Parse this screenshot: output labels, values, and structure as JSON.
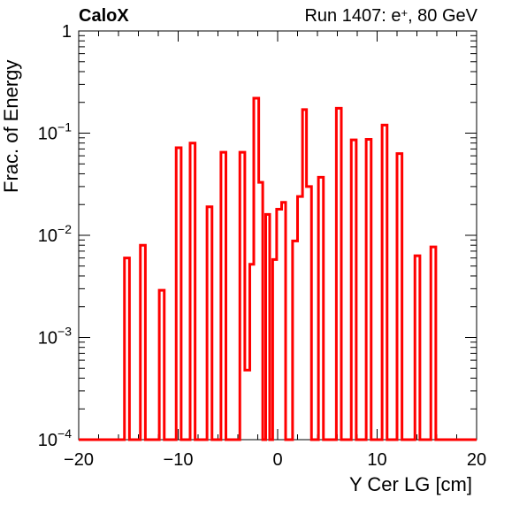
{
  "header": {
    "brand": "CaloX",
    "run_prefix": "Run 1407: e",
    "run_charge": "+",
    "run_suffix": ", 80 GeV"
  },
  "chart_data": {
    "type": "histogram",
    "xlabel": "Y Cer LG [cm]",
    "ylabel": "Frac. of Energy",
    "xlim": [
      -20,
      20
    ],
    "ylim": [
      0.0001,
      1
    ],
    "yscale": "log",
    "x_ticks": [
      -20,
      -10,
      0,
      10,
      20
    ],
    "y_ticks": [
      {
        "value": 1,
        "base": "1",
        "exp": ""
      },
      {
        "value": 0.1,
        "base": "10",
        "exp": "−1"
      },
      {
        "value": 0.01,
        "base": "10",
        "exp": "−2"
      },
      {
        "value": 0.001,
        "base": "10",
        "exp": "−3"
      },
      {
        "value": 0.0001,
        "base": "10",
        "exp": "−4"
      }
    ],
    "line_color": "#ff0000",
    "bins": [
      {
        "x0": -15.4,
        "x1": -14.9,
        "value": 0.006
      },
      {
        "x0": -13.8,
        "x1": -13.3,
        "value": 0.008
      },
      {
        "x0": -11.9,
        "x1": -11.4,
        "value": 0.0029
      },
      {
        "x0": -10.2,
        "x1": -9.7,
        "value": 0.072
      },
      {
        "x0": -8.8,
        "x1": -8.3,
        "value": 0.08
      },
      {
        "x0": -7.1,
        "x1": -6.6,
        "value": 0.019
      },
      {
        "x0": -5.7,
        "x1": -5.2,
        "value": 0.065
      },
      {
        "x0": -3.8,
        "x1": -3.3,
        "value": 0.065
      },
      {
        "x0": -3.3,
        "x1": -2.8,
        "value": 0.00048
      },
      {
        "x0": -2.8,
        "x1": -2.4,
        "value": 0.0052
      },
      {
        "x0": -2.4,
        "x1": -1.9,
        "value": 0.22
      },
      {
        "x0": -1.9,
        "x1": -1.5,
        "value": 0.033
      },
      {
        "x0": -1.2,
        "x1": -0.8,
        "value": 0.016
      },
      {
        "x0": -0.5,
        "x1": -0.1,
        "value": 0.0058
      },
      {
        "x0": -0.1,
        "x1": 0.4,
        "value": 0.018
      },
      {
        "x0": 0.4,
        "x1": 0.8,
        "value": 0.021
      },
      {
        "x0": 1.5,
        "x1": 2.0,
        "value": 0.0088
      },
      {
        "x0": 2.0,
        "x1": 2.5,
        "value": 0.024
      },
      {
        "x0": 2.5,
        "x1": 2.9,
        "value": 0.17
      },
      {
        "x0": 2.9,
        "x1": 3.4,
        "value": 0.03
      },
      {
        "x0": 4.1,
        "x1": 4.6,
        "value": 0.037
      },
      {
        "x0": 5.9,
        "x1": 6.4,
        "value": 0.175
      },
      {
        "x0": 7.4,
        "x1": 7.9,
        "value": 0.086
      },
      {
        "x0": 8.9,
        "x1": 9.4,
        "value": 0.087
      },
      {
        "x0": 10.5,
        "x1": 11.0,
        "value": 0.12
      },
      {
        "x0": 12.0,
        "x1": 12.5,
        "value": 0.063
      },
      {
        "x0": 13.8,
        "x1": 14.3,
        "value": 0.0063
      },
      {
        "x0": 15.4,
        "x1": 15.9,
        "value": 0.0077
      }
    ]
  }
}
